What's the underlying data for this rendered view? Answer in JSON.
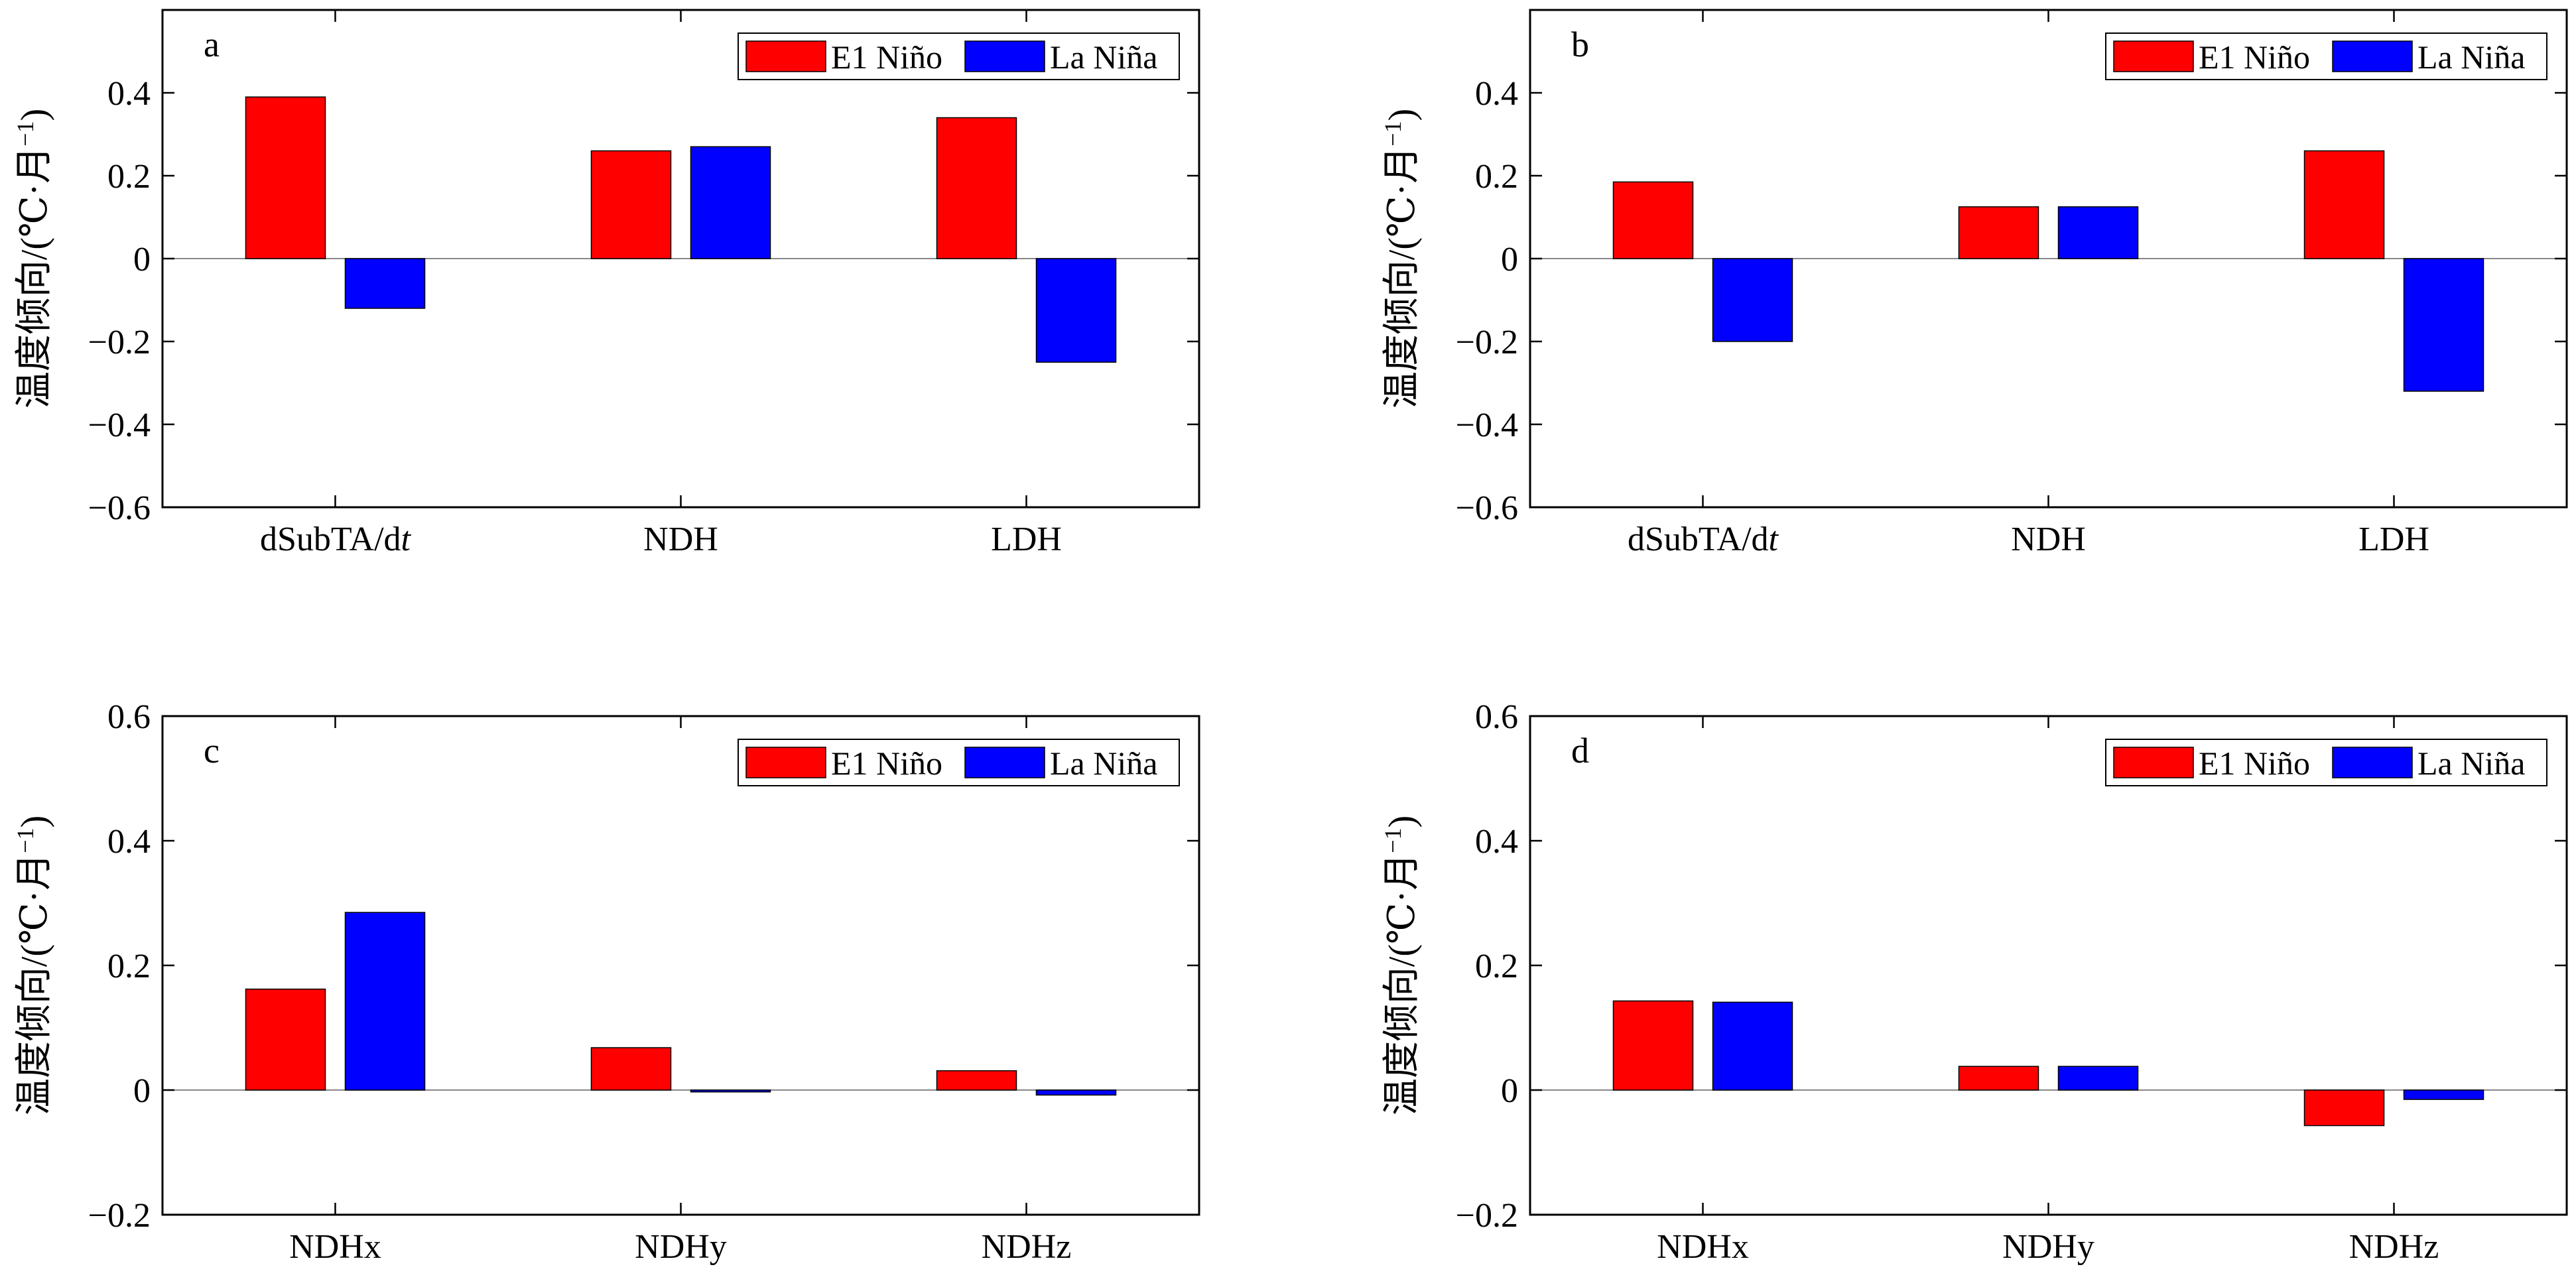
{
  "chart_data": [
    {
      "panel": "a",
      "type": "bar",
      "categories": [
        "dSubTA/d",
        "NDH",
        "LDH"
      ],
      "category_italic_suffix": [
        "t",
        "",
        ""
      ],
      "series": [
        {
          "name": "E1 Niño",
          "values": [
            0.39,
            0.26,
            0.34
          ],
          "color": "#ff0000"
        },
        {
          "name": "La Niña",
          "values": [
            -0.12,
            0.27,
            -0.25
          ],
          "color": "#0000ff"
        }
      ],
      "ylabel": "温度倾向/(℃·月",
      "ylabel_sup": "−1",
      "ylabel_close": ")",
      "ylim": [
        -0.6,
        0.6
      ],
      "yticks": [
        -0.6,
        -0.4,
        -0.2,
        0,
        0.2,
        0.4
      ],
      "yticklabels": [
        "−0.6",
        "−0.4",
        "−0.2",
        "0",
        "0.2",
        "0.4"
      ],
      "legend_position": "top-right",
      "grid": false
    },
    {
      "panel": "b",
      "type": "bar",
      "categories": [
        "dSubTA/d",
        "NDH",
        "LDH"
      ],
      "category_italic_suffix": [
        "t",
        "",
        ""
      ],
      "series": [
        {
          "name": "E1 Niño",
          "values": [
            0.185,
            0.125,
            0.26
          ],
          "color": "#ff0000"
        },
        {
          "name": "La Niña",
          "values": [
            -0.2,
            0.125,
            -0.32
          ],
          "color": "#0000ff"
        }
      ],
      "ylabel": "温度倾向/(℃·月",
      "ylabel_sup": "−1",
      "ylabel_close": ")",
      "ylim": [
        -0.6,
        0.6
      ],
      "yticks": [
        -0.6,
        -0.4,
        -0.2,
        0,
        0.2,
        0.4
      ],
      "yticklabels": [
        "−0.6",
        "−0.4",
        "−0.2",
        "0",
        "0.2",
        "0.4"
      ],
      "legend_position": "top-right",
      "grid": false
    },
    {
      "panel": "c",
      "type": "bar",
      "categories": [
        "NDHx",
        "NDHy",
        "NDHz"
      ],
      "category_italic_suffix": [
        "",
        "",
        ""
      ],
      "series": [
        {
          "name": "E1 Niño",
          "values": [
            0.162,
            0.068,
            0.031
          ],
          "color": "#ff0000"
        },
        {
          "name": "La Niña",
          "values": [
            0.285,
            -0.003,
            -0.008
          ],
          "color": "#0000ff"
        }
      ],
      "ylabel": "温度倾向/(℃·月",
      "ylabel_sup": "−1",
      "ylabel_close": ")",
      "ylim": [
        -0.2,
        0.6
      ],
      "yticks": [
        -0.2,
        0,
        0.2,
        0.4,
        0.6
      ],
      "yticklabels": [
        "−0.2",
        "0",
        "0.2",
        "0.4",
        "0.6"
      ],
      "legend_position": "top-right",
      "grid": false
    },
    {
      "panel": "d",
      "type": "bar",
      "categories": [
        "NDHx",
        "NDHy",
        "NDHz"
      ],
      "category_italic_suffix": [
        "",
        "",
        ""
      ],
      "series": [
        {
          "name": "E1 Niño",
          "values": [
            0.143,
            0.038,
            -0.057
          ],
          "color": "#ff0000"
        },
        {
          "name": "La Niña",
          "values": [
            0.141,
            0.038,
            -0.015
          ],
          "color": "#0000ff"
        }
      ],
      "ylabel": "温度倾向/(℃·月",
      "ylabel_sup": "−1",
      "ylabel_close": ")",
      "ylim": [
        -0.2,
        0.6
      ],
      "yticks": [
        -0.2,
        0,
        0.2,
        0.4,
        0.6
      ],
      "yticklabels": [
        "−0.2",
        "0",
        "0.2",
        "0.4",
        "0.6"
      ],
      "legend_position": "top-right",
      "grid": false
    }
  ]
}
